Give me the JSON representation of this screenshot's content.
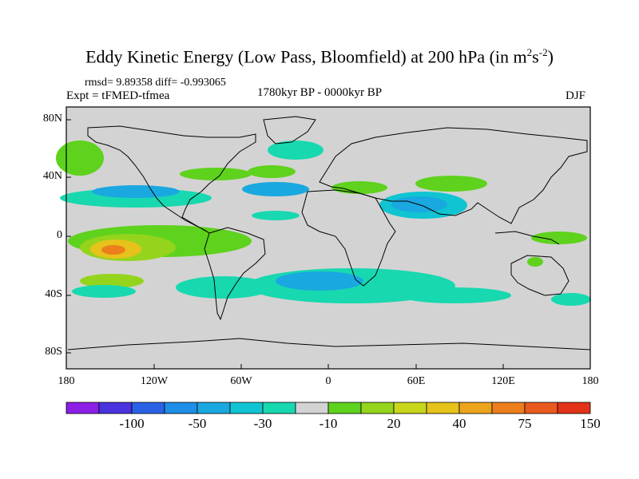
{
  "title": {
    "text": "Eddy Kinetic Energy (Low Pass, Bloomfield) at 200 hPa (in m",
    "sup1": "2",
    "mid": "s",
    "sup2": "-2",
    "end": ")"
  },
  "stats": "rmsd= 9.89358 diff= -0.993065",
  "expt": "Expt = tFMED-tfmea",
  "period": "1780kyr BP - 0000kyr BP",
  "season": "DJF",
  "map": {
    "projection": "cylindrical-equidistant",
    "lat_ticks": [
      "80N",
      "40N",
      "0",
      "40S",
      "80S"
    ],
    "lon_ticks": [
      "180",
      "120W",
      "60W",
      "0",
      "60E",
      "120E",
      "180"
    ],
    "land_color": "#d3d3d3",
    "ocean_color": "#d3d3d3"
  },
  "colorbar": {
    "colors": [
      "#8c1ee6",
      "#4a32e0",
      "#2a62e6",
      "#1e8ee8",
      "#1aa8e0",
      "#10c4d2",
      "#18d8b0",
      "#d3d3d3",
      "#5ed21c",
      "#94d41c",
      "#c8d61c",
      "#e6c21a",
      "#eca41c",
      "#ec7e1c",
      "#ea5a1e",
      "#e23218"
    ],
    "labels": [
      "-100",
      "-50",
      "-30",
      "-10",
      "20",
      "40",
      "75",
      "150"
    ]
  },
  "anomalies": [
    {
      "id": "pac-nw",
      "level": 20
    },
    {
      "id": "eq-pac",
      "level": 40
    },
    {
      "id": "eq-pac-core",
      "level": 75
    },
    {
      "id": "sub-pac-neg",
      "level": -10
    },
    {
      "id": "atl-neg",
      "level": -30
    },
    {
      "id": "asia-neg",
      "level": -30
    },
    {
      "id": "south-ocean-neg",
      "level": -10
    }
  ]
}
